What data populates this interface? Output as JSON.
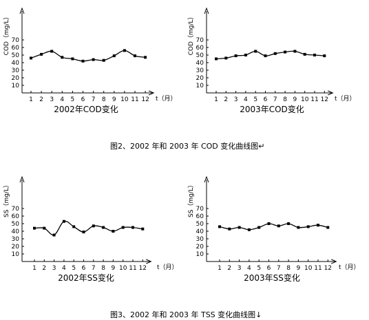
{
  "figure_captions": [
    "图2、2002 年和 2003 年 COD 变化曲线图↵",
    "图3、2002 年和 2003 年 TSS 变化曲线图↓"
  ],
  "chart_data": [
    {
      "type": "line",
      "title": "2002年COD变化",
      "ylabel": "COD（mg/L）",
      "xlabel": "t（月）",
      "x": [
        1,
        2,
        3,
        4,
        5,
        6,
        7,
        8,
        9,
        10,
        11,
        12
      ],
      "values": [
        46,
        51,
        55,
        47,
        45,
        42,
        44,
        43,
        49,
        56,
        49,
        47
      ],
      "ylim": [
        0,
        80
      ],
      "yticks": [
        10,
        20,
        30,
        40,
        50,
        60,
        70
      ]
    },
    {
      "type": "line",
      "title": "2003年COD变化",
      "ylabel": "COD（mg/L）",
      "xlabel": "t（月）",
      "x": [
        1,
        2,
        3,
        4,
        5,
        6,
        7,
        8,
        9,
        10,
        11,
        12
      ],
      "values": [
        45,
        46,
        49,
        50,
        55,
        49,
        52,
        54,
        55,
        51,
        50,
        49
      ],
      "ylim": [
        0,
        80
      ],
      "yticks": [
        10,
        20,
        30,
        40,
        50,
        60,
        70
      ]
    },
    {
      "type": "line",
      "title": "2002年SS变化",
      "ylabel": "SS（mg/L）",
      "xlabel": "t（月）",
      "x": [
        1,
        2,
        3,
        4,
        5,
        6,
        7,
        8,
        9,
        10,
        11,
        12
      ],
      "values": [
        44,
        44,
        35,
        53,
        46,
        39,
        47,
        45,
        40,
        45,
        45,
        43
      ],
      "ylim": [
        0,
        80
      ],
      "yticks": [
        10,
        20,
        30,
        40,
        50,
        60,
        70
      ]
    },
    {
      "type": "line",
      "title": "2003年SS变化",
      "ylabel": "SS（mg/L）",
      "xlabel": "t（月）",
      "x": [
        1,
        2,
        3,
        4,
        5,
        6,
        7,
        8,
        9,
        10,
        11,
        12
      ],
      "values": [
        46,
        43,
        45,
        42,
        45,
        50,
        47,
        50,
        45,
        46,
        48,
        45
      ],
      "ylim": [
        0,
        80
      ],
      "yticks": [
        10,
        20,
        30,
        40,
        50,
        60,
        70
      ]
    }
  ]
}
